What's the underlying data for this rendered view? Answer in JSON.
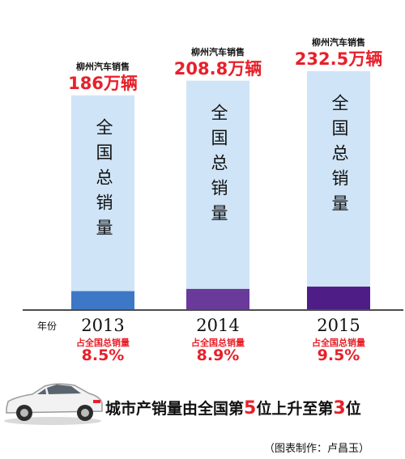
{
  "chart_data": {
    "type": "bar",
    "categories": [
      "2013",
      "2014",
      "2015"
    ],
    "series": [
      {
        "name": "全国总销量",
        "values": [
          2198,
          2349,
          2447
        ],
        "color": "#cfe4f6"
      },
      {
        "name": "柳州汽车销售",
        "values": [
          186,
          208.8,
          232.5
        ],
        "colors": [
          "#3d78c6",
          "#6a3a9a",
          "#4e1d86"
        ]
      }
    ],
    "top_labels": [
      "柳州汽车销售",
      "柳州汽车销售",
      "柳州汽车销售"
    ],
    "value_labels": [
      "186万辆",
      "208.8万辆",
      "232.5万辆"
    ],
    "in_bar_label": "全国总销量",
    "share_label": "占全国总销量",
    "shares": [
      "8.5%",
      "8.9%",
      "9.5%"
    ],
    "xlabel": "年份"
  },
  "caption": {
    "part1": "城市产销量由",
    "part2": "全国第",
    "from_rank": "5",
    "part3": "位上升至",
    "part4": "第",
    "to_rank": "3",
    "part5": "位"
  },
  "credit": "（图表制作：卢昌玉）"
}
